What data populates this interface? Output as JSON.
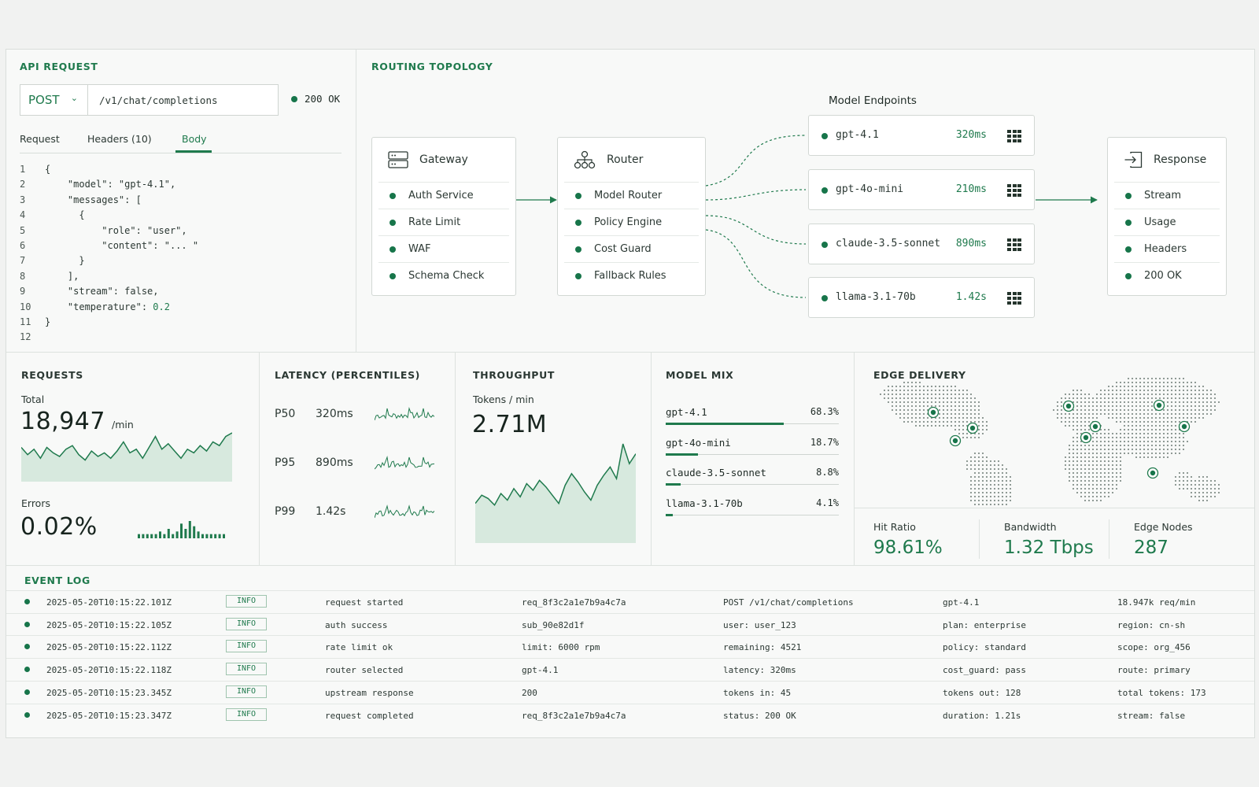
{
  "api_request": {
    "title": "API REQUEST",
    "method": "POST",
    "url": "/v1/chat/completions",
    "status": "200 OK",
    "tabs": [
      "Request",
      "Headers (10)",
      "Body"
    ],
    "code": [
      {
        "n": "1",
        "t": "{"
      },
      {
        "n": "2",
        "t": "    \"model\": \"gpt-4.1\","
      },
      {
        "n": "3",
        "t": "    \"messages\": ["
      },
      {
        "n": "4",
        "t": "      {"
      },
      {
        "n": "5",
        "t": "          \"role\": \"user\","
      },
      {
        "n": "6",
        "t": "          \"content\": \"... \""
      },
      {
        "n": "7",
        "t": "      }"
      },
      {
        "n": "8",
        "t": "    ],"
      },
      {
        "n": "9",
        "t": "    \"stream\": false,"
      },
      {
        "n": "10",
        "t": "    \"temperature\": "
      },
      {
        "n": "11",
        "t": "}"
      },
      {
        "n": "12",
        "t": ""
      }
    ],
    "temperature_value": "0.2"
  },
  "topology": {
    "title": "ROUTING TOPOLOGY",
    "endpoints_title": "Model Endpoints",
    "gateway": {
      "name": "Gateway",
      "items": [
        "Auth Service",
        "Rate Limit",
        "WAF",
        "Schema Check"
      ]
    },
    "router": {
      "name": "Router",
      "items": [
        "Model Router",
        "Policy Engine",
        "Cost Guard",
        "Fallback Rules"
      ]
    },
    "response": {
      "name": "Response",
      "items": [
        "Stream",
        "Usage",
        "Headers",
        "200 OK"
      ]
    },
    "endpoints": [
      {
        "name": "gpt-4.1",
        "latency": "320ms"
      },
      {
        "name": "gpt-4o-mini",
        "latency": "210ms"
      },
      {
        "name": "claude-3.5-sonnet",
        "latency": "890ms"
      },
      {
        "name": "llama-3.1-70b",
        "latency": "1.42s"
      }
    ]
  },
  "requests": {
    "title": "REQUESTS",
    "total_label": "Total",
    "total_value": "18,947",
    "total_unit": "/min",
    "errors_label": "Errors",
    "errors_value": "0.02%",
    "spark_values": [
      18,
      14,
      17,
      12,
      18,
      15,
      13,
      17,
      19,
      14,
      11,
      16,
      13,
      15,
      12,
      16,
      21,
      15,
      17,
      12,
      18,
      24,
      17,
      20,
      16,
      12,
      17,
      15,
      19,
      16,
      21,
      19,
      24,
      26
    ],
    "error_bars": [
      1,
      1,
      1,
      1,
      1,
      2,
      1,
      3,
      1,
      2,
      5,
      3,
      6,
      4,
      2,
      1,
      1,
      1,
      1,
      1,
      1
    ]
  },
  "latency": {
    "title": "LATENCY (PERCENTILES)",
    "rows": [
      {
        "p": "P50",
        "v": "320ms"
      },
      {
        "p": "P95",
        "v": "890ms"
      },
      {
        "p": "P99",
        "v": "1.42s"
      }
    ]
  },
  "throughput": {
    "title": "THROUGHPUT",
    "label": "Tokens / min",
    "value": "2.71M",
    "spark_values": [
      22,
      27,
      25,
      21,
      28,
      24,
      31,
      26,
      34,
      30,
      36,
      32,
      27,
      22,
      33,
      40,
      35,
      29,
      24,
      33,
      39,
      44,
      37,
      58,
      46,
      52
    ]
  },
  "model_mix": {
    "title": "MODEL MIX",
    "rows": [
      {
        "name": "gpt-4.1",
        "pct": "68.3%",
        "frac": 0.683
      },
      {
        "name": "gpt-4o-mini",
        "pct": "18.7%",
        "frac": 0.187
      },
      {
        "name": "claude-3.5-sonnet",
        "pct": "8.8%",
        "frac": 0.088
      },
      {
        "name": "llama-3.1-70b",
        "pct": "4.1%",
        "frac": 0.041
      }
    ]
  },
  "edge": {
    "title": "EDGE DELIVERY",
    "stats": [
      {
        "label": "Hit Ratio",
        "value": "98.61%"
      },
      {
        "label": "Bandwidth",
        "value": "1.32 Tbps"
      },
      {
        "label": "Edge Nodes",
        "value": "287"
      }
    ]
  },
  "event_log": {
    "title": "EVENT LOG",
    "rows": [
      {
        "ts": "2025-05-20T10:15:22.101Z",
        "level": "INFO",
        "event": "request started",
        "c1": "req_8f3c2a1e7b9a4c7a",
        "c2": "POST  /v1/chat/completions",
        "c3": "gpt-4.1",
        "c4": "18.947k req/min"
      },
      {
        "ts": "2025-05-20T10:15:22.105Z",
        "level": "INFO",
        "event": "auth success",
        "c1": "sub_90e82d1f",
        "c2": "user: user_123",
        "c3": "plan: enterprise",
        "c4": "region: cn-sh"
      },
      {
        "ts": "2025-05-20T10:15:22.112Z",
        "level": "INFO",
        "event": "rate limit ok",
        "c1": "limit: 6000 rpm",
        "c2": "remaining: 4521",
        "c3": "policy: standard",
        "c4": "scope: org_456"
      },
      {
        "ts": "2025-05-20T10:15:22.118Z",
        "level": "INFO",
        "event": "router selected",
        "c1": "gpt-4.1",
        "c2": "latency: 320ms",
        "c3": "cost_guard: pass",
        "c4": "route: primary"
      },
      {
        "ts": "2025-05-20T10:15:23.345Z",
        "level": "INFO",
        "event": "upstream response",
        "c1": "200",
        "c2": "tokens in: 45",
        "c3": "tokens out: 128",
        "c4": "total tokens: 173"
      },
      {
        "ts": "2025-05-20T10:15:23.347Z",
        "level": "INFO",
        "event": "request completed",
        "c1": "req_8f3c2a1e7b9a4c7a",
        "c2": "status: 200 OK",
        "c3": "duration: 1.21s",
        "c4": "stream: false"
      }
    ]
  },
  "colors": {
    "accent": "#1f7a4d",
    "panel": "#f8f9f8",
    "border": "#dde2df"
  },
  "icons": {
    "gateway": "server-icon",
    "router": "network-icon",
    "response": "exit-arrow-icon",
    "endpoint": "grid-icon"
  }
}
